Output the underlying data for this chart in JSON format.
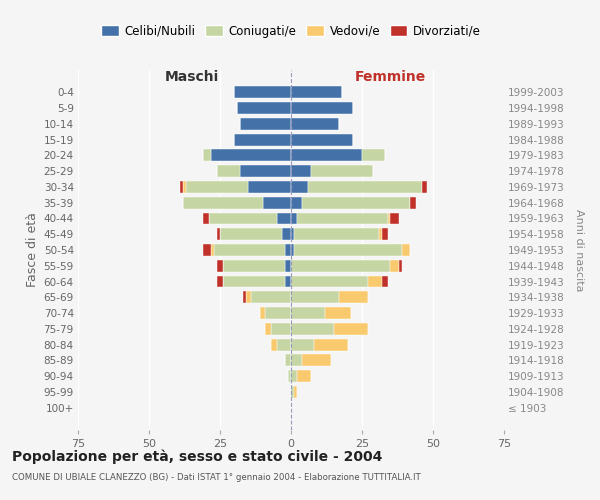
{
  "age_groups": [
    "100+",
    "95-99",
    "90-94",
    "85-89",
    "80-84",
    "75-79",
    "70-74",
    "65-69",
    "60-64",
    "55-59",
    "50-54",
    "45-49",
    "40-44",
    "35-39",
    "30-34",
    "25-29",
    "20-24",
    "15-19",
    "10-14",
    "5-9",
    "0-4"
  ],
  "birth_years": [
    "≤ 1903",
    "1904-1908",
    "1909-1913",
    "1914-1918",
    "1919-1923",
    "1924-1928",
    "1929-1933",
    "1934-1938",
    "1939-1943",
    "1944-1948",
    "1949-1953",
    "1954-1958",
    "1959-1963",
    "1964-1968",
    "1969-1973",
    "1974-1978",
    "1979-1983",
    "1984-1988",
    "1989-1993",
    "1994-1998",
    "1999-2003"
  ],
  "male_celibe": [
    0,
    0,
    0,
    0,
    0,
    0,
    0,
    0,
    2,
    2,
    2,
    3,
    5,
    10,
    15,
    18,
    28,
    20,
    18,
    19,
    20
  ],
  "male_coniugato": [
    0,
    0,
    1,
    2,
    5,
    7,
    9,
    14,
    22,
    22,
    25,
    22,
    24,
    28,
    22,
    8,
    3,
    0,
    0,
    0,
    0
  ],
  "male_vedovo": [
    0,
    0,
    0,
    0,
    2,
    2,
    2,
    2,
    0,
    0,
    1,
    0,
    0,
    0,
    1,
    0,
    0,
    0,
    0,
    0,
    0
  ],
  "male_divorziato": [
    0,
    0,
    0,
    0,
    0,
    0,
    0,
    1,
    2,
    2,
    3,
    1,
    2,
    0,
    1,
    0,
    0,
    0,
    0,
    0,
    0
  ],
  "female_nubile": [
    0,
    0,
    0,
    0,
    0,
    0,
    0,
    0,
    0,
    0,
    1,
    1,
    2,
    4,
    6,
    7,
    25,
    22,
    17,
    22,
    18
  ],
  "female_coniugata": [
    0,
    1,
    2,
    4,
    8,
    15,
    12,
    17,
    27,
    35,
    38,
    30,
    32,
    38,
    40,
    22,
    8,
    0,
    0,
    0,
    0
  ],
  "female_vedova": [
    0,
    1,
    5,
    10,
    12,
    12,
    9,
    10,
    5,
    3,
    3,
    1,
    1,
    0,
    0,
    0,
    0,
    0,
    0,
    0,
    0
  ],
  "female_divorziata": [
    0,
    0,
    0,
    0,
    0,
    0,
    0,
    0,
    2,
    1,
    0,
    2,
    3,
    2,
    2,
    0,
    0,
    0,
    0,
    0,
    0
  ],
  "color_celibe": "#4472a8",
  "color_coniugato": "#c5d6a4",
  "color_vedovo": "#f9c96e",
  "color_divorziato": "#c0312a",
  "xlim": 75,
  "title": "Popolazione per età, sesso e stato civile - 2004",
  "subtitle": "COMUNE DI UBIALE CLANEZZO (BG) - Dati ISTAT 1° gennaio 2004 - Elaborazione TUTTITALIA.IT",
  "ylabel_left": "Fasce di età",
  "ylabel_right": "Anni di nascita",
  "legend_labels": [
    "Celibi/Nubili",
    "Coniugati/e",
    "Vedovi/e",
    "Divorziati/e"
  ],
  "background_color": "#f5f5f5",
  "label_maschi": "Maschi",
  "label_femmine": "Femmine"
}
